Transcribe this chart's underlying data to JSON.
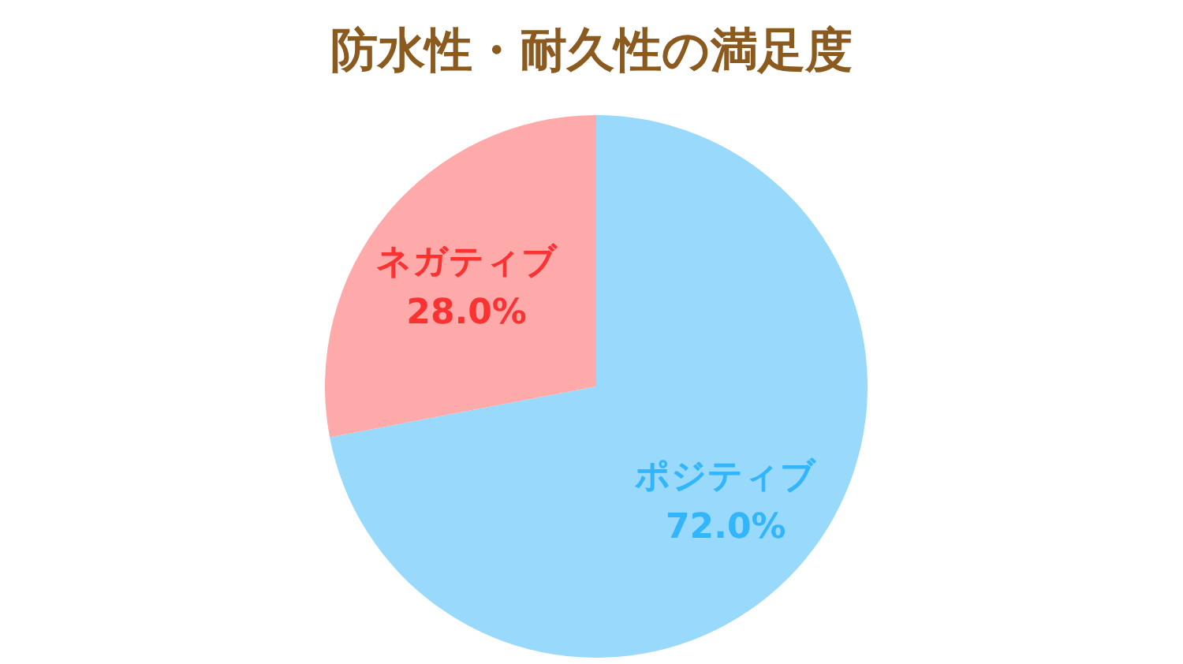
{
  "chart_data": {
    "type": "pie",
    "title": "防水性・耐久性の満足度",
    "categories": [
      "ポジティブ",
      "ネガティブ"
    ],
    "values": [
      72.0,
      28.0
    ],
    "value_labels": [
      "72.0%",
      "28.0%"
    ],
    "colors": [
      "#99d9fb",
      "#ffaaaa"
    ]
  }
}
